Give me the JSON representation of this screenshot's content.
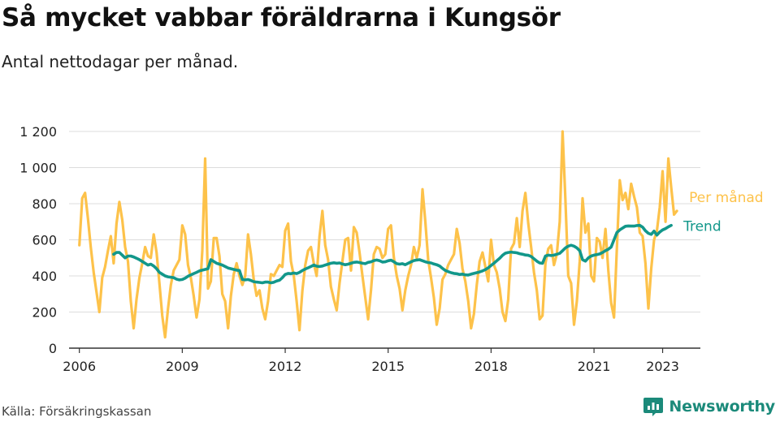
{
  "header": {
    "title": "Så mycket vabbar föräldrarna i Kungsör",
    "subtitle": "Antal nettodagar per månad."
  },
  "footer": {
    "source": "Källa: Försäkringskassan",
    "brand": "Newsworthy",
    "brand_icon": "newsworthy-logo-icon"
  },
  "colors": {
    "per_manad": "#fdc24a",
    "trend": "#12978a",
    "brand": "#1b8a7a"
  },
  "chart_data": {
    "type": "line",
    "title": "Så mycket vabbar föräldrarna i Kungsör",
    "subtitle": "Antal nettodagar per månad.",
    "xlabel": "",
    "ylabel": "",
    "xlim": [
      2005.7,
      2024.1
    ],
    "ylim": [
      0,
      1200
    ],
    "y_ticks": [
      0,
      200,
      400,
      600,
      800,
      1000,
      1200
    ],
    "y_tick_labels": [
      "0",
      "200",
      "400",
      "600",
      "800",
      "1 000",
      "1 200"
    ],
    "x_ticks": [
      2006,
      2009,
      2012,
      2015,
      2018,
      2021,
      2023
    ],
    "grid": "horizontal",
    "legend": "direct labels at right end of lines",
    "series": [
      {
        "name": "Per månad",
        "x_start": 2006.0,
        "step": 0.0833333,
        "values": [
          570,
          830,
          860,
          720,
          560,
          420,
          310,
          200,
          390,
          450,
          540,
          620,
          470,
          690,
          810,
          710,
          560,
          480,
          260,
          110,
          270,
          390,
          470,
          560,
          510,
          500,
          630,
          530,
          360,
          180,
          60,
          220,
          350,
          430,
          460,
          490,
          680,
          630,
          460,
          390,
          290,
          170,
          270,
          540,
          1050,
          330,
          370,
          610,
          610,
          510,
          300,
          260,
          110,
          290,
          410,
          470,
          400,
          350,
          400,
          630,
          520,
          380,
          290,
          320,
          220,
          160,
          260,
          410,
          400,
          430,
          460,
          450,
          650,
          690,
          480,
          400,
          260,
          100,
          320,
          460,
          540,
          560,
          470,
          400,
          620,
          760,
          570,
          490,
          340,
          270,
          210,
          360,
          480,
          600,
          610,
          430,
          670,
          640,
          530,
          400,
          280,
          160,
          320,
          520,
          560,
          550,
          500,
          520,
          660,
          680,
          500,
          400,
          330,
          210,
          320,
          400,
          460,
          560,
          500,
          570,
          880,
          700,
          490,
          390,
          280,
          130,
          220,
          380,
          410,
          460,
          490,
          520,
          660,
          580,
          440,
          370,
          260,
          110,
          190,
          350,
          480,
          530,
          450,
          370,
          600,
          460,
          420,
          330,
          200,
          150,
          270,
          550,
          580,
          720,
          560,
          760,
          860,
          690,
          560,
          420,
          320,
          160,
          180,
          470,
          550,
          570,
          460,
          520,
          700,
          1200,
          820,
          400,
          360,
          130,
          260,
          480,
          830,
          640,
          690,
          400,
          370,
          610,
          590,
          500,
          660,
          430,
          250,
          170,
          550,
          930,
          820,
          860,
          770,
          910,
          840,
          780,
          640,
          620,
          470,
          220,
          440,
          600,
          650,
          780,
          980,
          700,
          1050,
          890,
          740,
          760
        ]
      },
      {
        "name": "Trend",
        "x_start": 2007.0,
        "step": 0.0833333,
        "values": [
          520,
          530,
          530,
          515,
          500,
          510,
          510,
          505,
          498,
          490,
          480,
          470,
          460,
          465,
          455,
          440,
          420,
          410,
          400,
          395,
          393,
          390,
          382,
          378,
          380,
          388,
          398,
          406,
          413,
          420,
          428,
          432,
          436,
          440,
          490,
          480,
          470,
          465,
          460,
          452,
          444,
          440,
          436,
          432,
          430,
          380,
          378,
          380,
          375,
          368,
          366,
          364,
          362,
          366,
          366,
          362,
          365,
          372,
          376,
          390,
          408,
          414,
          412,
          416,
          413,
          420,
          430,
          438,
          445,
          452,
          460,
          454,
          452,
          455,
          460,
          465,
          470,
          473,
          470,
          472,
          466,
          462,
          465,
          470,
          475,
          477,
          474,
          470,
          468,
          475,
          478,
          485,
          488,
          484,
          477,
          478,
          484,
          487,
          478,
          468,
          465,
          468,
          462,
          470,
          478,
          485,
          488,
          490,
          484,
          478,
          474,
          472,
          466,
          462,
          455,
          442,
          430,
          424,
          418,
          414,
          412,
          408,
          410,
          406,
          405,
          410,
          414,
          418,
          422,
          428,
          435,
          445,
          458,
          470,
          484,
          498,
          514,
          526,
          530,
          532,
          530,
          528,
          523,
          520,
          516,
          514,
          508,
          495,
          482,
          472,
          470,
          510,
          515,
          513,
          515,
          520,
          525,
          540,
          555,
          565,
          570,
          565,
          555,
          540,
          490,
          482,
          500,
          510,
          515,
          518,
          522,
          530,
          540,
          548,
          560,
          600,
          640,
          655,
          665,
          675,
          677,
          676,
          676,
          679,
          680,
          670,
          650,
          636,
          630,
          648,
          626,
          643,
          655,
          662,
          672,
          680
        ]
      }
    ]
  }
}
